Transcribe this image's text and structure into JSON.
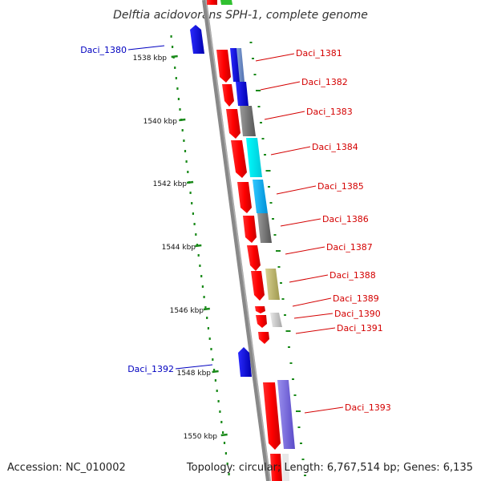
{
  "title": "Delftia acidovorans SPH-1, complete genome",
  "footer": {
    "accession": "Accession: NC_010002",
    "summary": "Topology: circular; Length: 6,767,514 bp; Genes: 6,135"
  },
  "scale": {
    "ticks": [
      "1538 kbp",
      "1540 kbp",
      "1542 kbp",
      "1544 kbp",
      "1546 kbp",
      "1548 kbp",
      "1550 kbp"
    ]
  },
  "genes": [
    {
      "name": "Daci_1380",
      "strand": "minus",
      "color": "#0000e6"
    },
    {
      "name": "Daci_1381",
      "strand": "plus",
      "color": "#ff0000"
    },
    {
      "name": "Daci_1382",
      "strand": "plus",
      "color": "#ff0000"
    },
    {
      "name": "Daci_1383",
      "strand": "plus",
      "color": "#ff0000"
    },
    {
      "name": "Daci_1384",
      "strand": "plus",
      "color": "#ff0000"
    },
    {
      "name": "Daci_1385",
      "strand": "plus",
      "color": "#ff0000"
    },
    {
      "name": "Daci_1386",
      "strand": "plus",
      "color": "#ff0000"
    },
    {
      "name": "Daci_1387",
      "strand": "plus",
      "color": "#ff0000"
    },
    {
      "name": "Daci_1388",
      "strand": "plus",
      "color": "#ff0000"
    },
    {
      "name": "Daci_1389",
      "strand": "plus",
      "color": "#ff0000"
    },
    {
      "name": "Daci_1390",
      "strand": "plus",
      "color": "#ff0000"
    },
    {
      "name": "Daci_1391",
      "strand": "plus",
      "color": "#ff0000"
    },
    {
      "name": "Daci_1392",
      "strand": "minus",
      "color": "#0000e6"
    },
    {
      "name": "Daci_1393",
      "strand": "plus",
      "color": "#ff0000"
    }
  ],
  "colors": {
    "backbone": "#888888",
    "tick": "#1a8a1a",
    "plus_label": "#d40000",
    "minus_label": "#0000c0"
  }
}
